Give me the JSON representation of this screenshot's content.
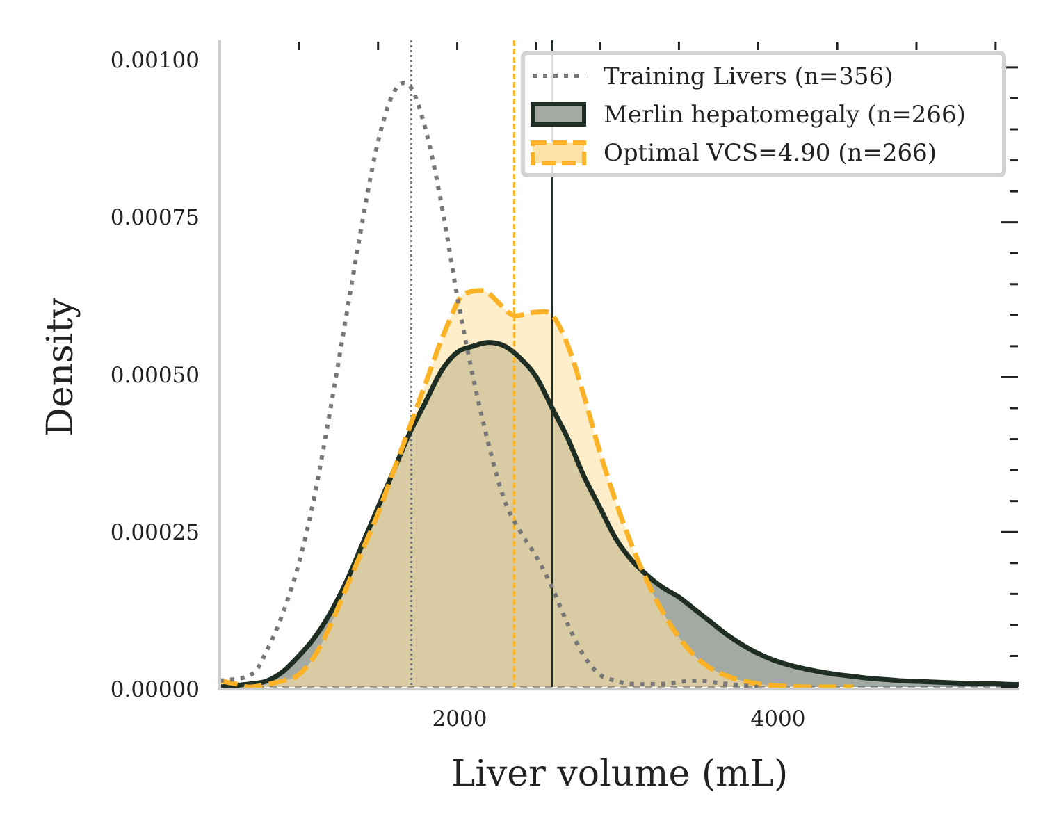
{
  "chart_data": {
    "type": "area",
    "title": "",
    "xlabel": "Liver volume (mL)",
    "ylabel": "Density",
    "xlim": [
      500,
      5550
    ],
    "ylim": [
      0,
      0.00101
    ],
    "x_ticks": [
      2000,
      4000
    ],
    "x_tick_labels": [
      "2000",
      "4000"
    ],
    "x_minor_ticks_top": [
      1000,
      1500,
      2000,
      2500,
      2900,
      3400,
      3900,
      4400,
      4900,
      5400
    ],
    "y_ticks": [
      0,
      0.00025,
      0.0005,
      0.00075,
      0.001
    ],
    "y_tick_labels": [
      "0.00000",
      "0.00025",
      "0.00050",
      "0.00075",
      "0.00100"
    ],
    "y_minor_ticks_right": [
      5e-05,
      0.0001,
      0.00015,
      0.0002,
      0.0003,
      0.00035,
      0.0004,
      0.00045,
      0.00055,
      0.0006,
      0.00065,
      0.0007,
      0.0008,
      0.00085,
      0.0009,
      0.00095
    ],
    "legend_position": "top-right",
    "series": [
      {
        "name": "Training Livers (n=356)",
        "style": "dotted",
        "color": "#777777",
        "fill": null,
        "median_line": 1710,
        "x": [
          500,
          700,
          800,
          900,
          1000,
          1100,
          1200,
          1300,
          1400,
          1500,
          1600,
          1700,
          1800,
          1900,
          2000,
          2100,
          2200,
          2300,
          2400,
          2500,
          2600,
          2700,
          2800,
          2900,
          3000,
          3100,
          3300,
          3500,
          3700,
          3900
        ],
        "y": [
          1e-05,
          2e-05,
          6e-05,
          0.00012,
          0.0002,
          0.00031,
          0.00045,
          0.0006,
          0.00075,
          0.00088,
          0.00096,
          0.00097,
          0.0009,
          0.00078,
          0.00063,
          0.0005,
          0.00039,
          0.0003,
          0.00025,
          0.00021,
          0.00016,
          0.0001,
          5e-05,
          2e-05,
          1e-05,
          5e-06,
          5e-06,
          1e-05,
          5e-06,
          0.0
        ]
      },
      {
        "name": "Merlin hepatomegaly (n=266)",
        "style": "solid",
        "color": "#1e2e22",
        "fill": "#a3aaa3",
        "median_line": 2600,
        "x": [
          500,
          700,
          800,
          900,
          1000,
          1100,
          1200,
          1300,
          1400,
          1500,
          1600,
          1700,
          1800,
          1900,
          2000,
          2100,
          2200,
          2300,
          2400,
          2500,
          2600,
          2700,
          2800,
          2900,
          3000,
          3100,
          3200,
          3300,
          3400,
          3500,
          3600,
          3700,
          3800,
          3900,
          4000,
          4100,
          4200,
          4300,
          4400,
          4500,
          4600,
          4700,
          4800,
          4900,
          5000,
          5100,
          5200,
          5300,
          5400,
          5500,
          5550
        ],
        "y": [
          0.0,
          5e-06,
          1e-05,
          2.5e-05,
          5e-05,
          8e-05,
          0.00012,
          0.00017,
          0.00023,
          0.00029,
          0.00035,
          0.00041,
          0.00046,
          0.00051,
          0.00054,
          0.00055,
          0.000556,
          0.00055,
          0.00053,
          0.0005,
          0.00045,
          0.0004,
          0.00034,
          0.00029,
          0.00024,
          0.000205,
          0.00018,
          0.00016,
          0.000145,
          0.000125,
          0.000105,
          8.5e-05,
          6.8e-05,
          5.4e-05,
          4.3e-05,
          3.5e-05,
          2.9e-05,
          2.4e-05,
          2e-05,
          1.7e-05,
          1.4e-05,
          1.2e-05,
          1e-05,
          9e-06,
          8e-06,
          7e-06,
          6e-06,
          5e-06,
          5e-06,
          4e-06,
          4e-06
        ]
      },
      {
        "name": "Optimal VCS=4.90 (n=266)",
        "style": "dashed",
        "color": "#fbb226",
        "fill": "#fde2a6",
        "median_line": 2360,
        "x": [
          500,
          600,
          700,
          900,
          1000,
          1100,
          1200,
          1300,
          1400,
          1500,
          1600,
          1700,
          1800,
          1900,
          2000,
          2050,
          2150,
          2200,
          2300,
          2350,
          2400,
          2500,
          2600,
          2700,
          2800,
          2900,
          3000,
          3100,
          3200,
          3300,
          3400,
          3500,
          3600,
          3700,
          3800,
          3900,
          4000,
          4100,
          4200,
          4300,
          4400,
          4500
        ],
        "y": [
          1e-05,
          5e-06,
          0.0,
          1e-05,
          2e-05,
          5e-05,
          0.0001,
          0.00016,
          0.00022,
          0.00028,
          0.00035,
          0.00042,
          0.00049,
          0.00056,
          0.00062,
          0.000635,
          0.00064,
          0.000635,
          0.00061,
          0.0006,
          0.0006,
          0.000605,
          0.0006,
          0.00055,
          0.00047,
          0.00038,
          0.0003,
          0.00023,
          0.00017,
          0.00012,
          8e-05,
          5e-05,
          3e-05,
          1.8e-05,
          1e-05,
          5e-06,
          2e-06,
          1e-06,
          0.0,
          0.0,
          0.0,
          0.0
        ]
      }
    ]
  },
  "colors": {
    "axis_spine": "#cccccc",
    "tick_mark": "#222222",
    "legend_border": "#d3d3d3",
    "baseline": "#555555"
  }
}
